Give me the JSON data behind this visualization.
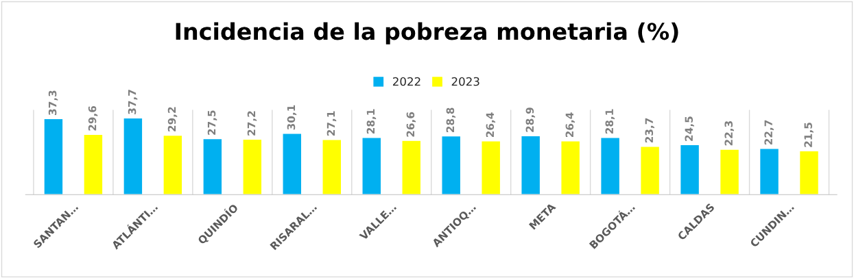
{
  "chart_data": {
    "type": "bar",
    "title": "Incidencia de la pobreza monetaria (%)",
    "categories": [
      "SANTAN…",
      "ATLÁNTI…",
      "QUINDÍO",
      "RISARAL…",
      "VALLE…",
      "ANTIOQ…",
      "META",
      "BOGOTÁ…",
      "CALDAS",
      "CUNDIN…"
    ],
    "series": [
      {
        "name": "2022",
        "color": "#00b0f0",
        "values": [
          37.3,
          37.7,
          27.5,
          30.1,
          28.1,
          28.8,
          28.9,
          28.1,
          24.5,
          22.7
        ],
        "value_labels": [
          "37,3",
          "37,7",
          "27,5",
          "30,1",
          "28,1",
          "28,8",
          "28,9",
          "28,1",
          "24,5",
          "22,7"
        ]
      },
      {
        "name": "2023",
        "color": "#ffff00",
        "values": [
          29.6,
          29.2,
          27.2,
          27.1,
          26.6,
          26.4,
          26.4,
          23.7,
          22.3,
          21.5
        ],
        "value_labels": [
          "29,6",
          "29,2",
          "27,2",
          "27,1",
          "26,6",
          "26,4",
          "26,4",
          "23,7",
          "22,3",
          "21,5"
        ]
      }
    ],
    "legend": "top",
    "grid": false,
    "tick_labels": "x"
  }
}
